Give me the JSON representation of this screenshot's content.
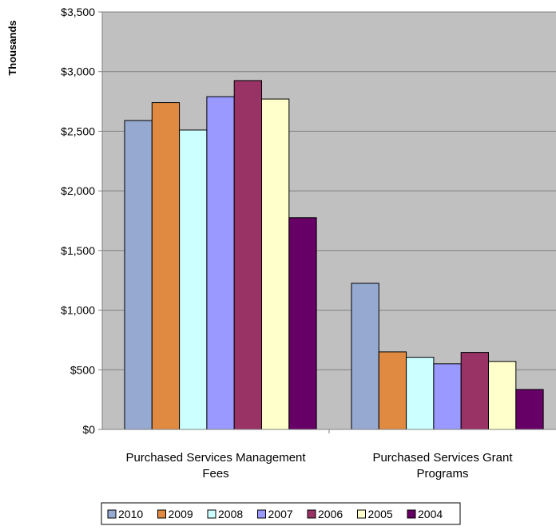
{
  "chart_data": {
    "type": "bar",
    "title": "",
    "xlabel": "",
    "ylabel": "Thousands",
    "ylim": [
      0,
      3500
    ],
    "yticks": [
      "$0",
      "$500",
      "$1,000",
      "$1,500",
      "$2,000",
      "$2,500",
      "$3,000",
      "$3,500"
    ],
    "categories": [
      [
        "Purchased Services Management",
        "Fees"
      ],
      [
        "Purchased Services Grant",
        "Programs"
      ]
    ],
    "series": [
      {
        "name": "2010",
        "color": "#95A9D1",
        "values": [
          2590,
          1225
        ]
      },
      {
        "name": "2009",
        "color": "#DF8A40",
        "values": [
          2740,
          650
        ]
      },
      {
        "name": "2008",
        "color": "#CCFFFF",
        "values": [
          2510,
          605
        ]
      },
      {
        "name": "2007",
        "color": "#9999FF",
        "values": [
          2790,
          550
        ]
      },
      {
        "name": "2006",
        "color": "#993366",
        "values": [
          2925,
          645
        ]
      },
      {
        "name": "2005",
        "color": "#FFFFCC",
        "values": [
          2770,
          570
        ]
      },
      {
        "name": "2004",
        "color": "#660066",
        "values": [
          1775,
          335
        ]
      }
    ],
    "grid": true,
    "plot_background": "#C0C0C0",
    "legend_position": "bottom"
  }
}
